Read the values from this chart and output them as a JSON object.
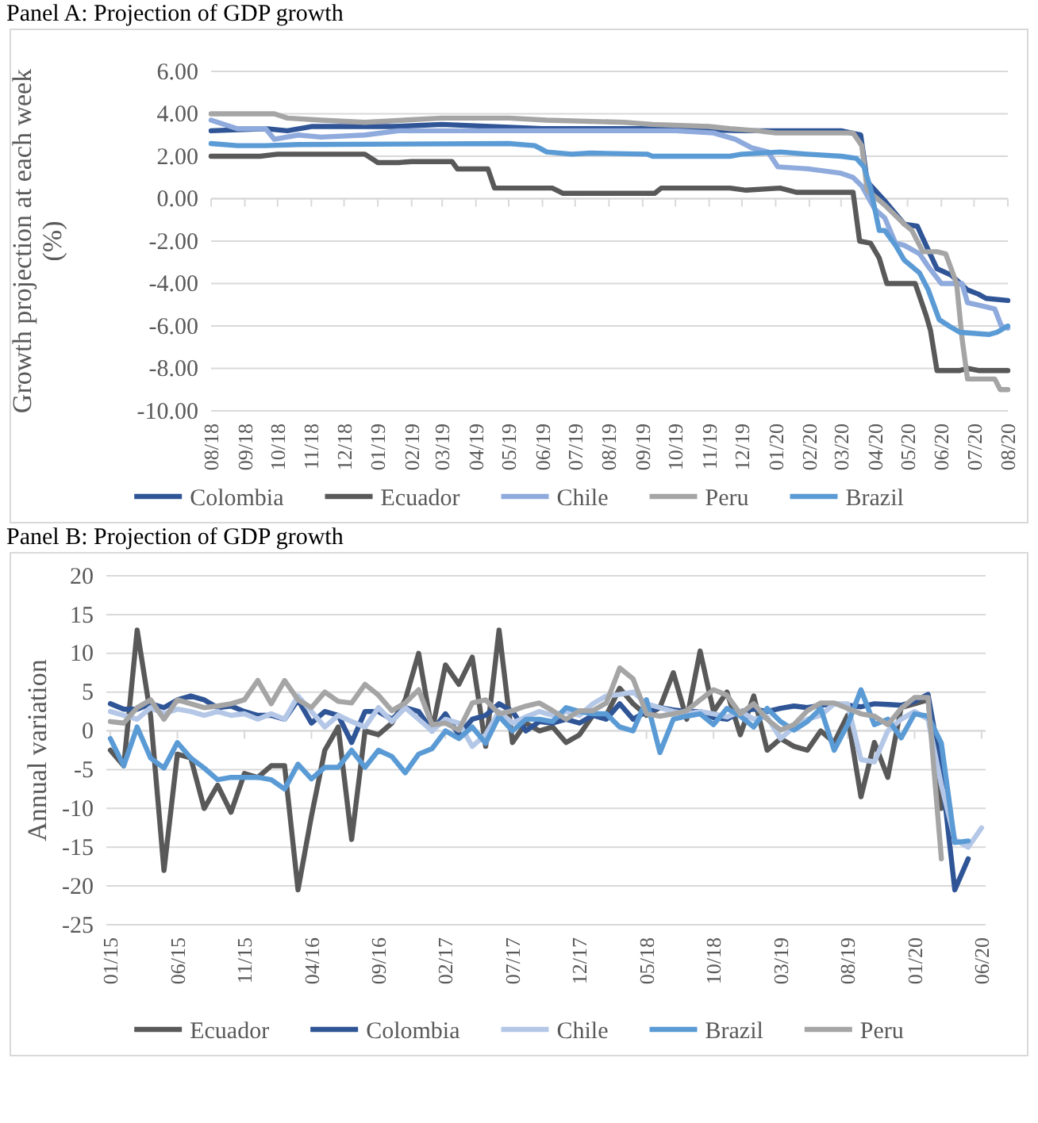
{
  "chart_data": [
    {
      "type": "line",
      "title": "Panel A: Projection of GDP growth",
      "ylabel": "Growth projection at each week (%)",
      "xlim": [
        "2018-08",
        "2020-08"
      ],
      "xticks": [
        {
          "value": "2018-08",
          "label": "08/18"
        },
        {
          "value": "2018-09",
          "label": "09/18"
        },
        {
          "value": "2018-10",
          "label": "10/18"
        },
        {
          "value": "2018-11",
          "label": "11/18"
        },
        {
          "value": "2018-12",
          "label": "12/18"
        },
        {
          "value": "2019-01",
          "label": "01/19"
        },
        {
          "value": "2019-02",
          "label": "02/19"
        },
        {
          "value": "2019-03",
          "label": "03/19"
        },
        {
          "value": "2019-04",
          "label": "04/19"
        },
        {
          "value": "2019-05",
          "label": "05/19"
        },
        {
          "value": "2019-06",
          "label": "06/19"
        },
        {
          "value": "2019-07",
          "label": "07/19"
        },
        {
          "value": "2019-08",
          "label": "08/19"
        },
        {
          "value": "2019-09",
          "label": "09/19"
        },
        {
          "value": "2019-10",
          "label": "10/19"
        },
        {
          "value": "2019-11",
          "label": "11/19"
        },
        {
          "value": "2019-12",
          "label": "12/19"
        },
        {
          "value": "2020-01",
          "label": "01/20"
        },
        {
          "value": "2020-02",
          "label": "02/20"
        },
        {
          "value": "2020-03",
          "label": "03/20"
        },
        {
          "value": "2020-04",
          "label": "04/20"
        },
        {
          "value": "2020-05",
          "label": "05/20"
        },
        {
          "value": "2020-06",
          "label": "06/20"
        },
        {
          "value": "2020-07",
          "label": "07/20"
        },
        {
          "value": "2020-08",
          "label": "08/20"
        }
      ],
      "ylim": [
        -10,
        6
      ],
      "yticks": [
        {
          "value": -10,
          "label": "-10.00"
        },
        {
          "value": -8,
          "label": "-8.00"
        },
        {
          "value": -6,
          "label": "-6.00"
        },
        {
          "value": -4,
          "label": "-4.00"
        },
        {
          "value": -2,
          "label": "-2.00"
        },
        {
          "value": 0,
          "label": "0.00"
        },
        {
          "value": 2,
          "label": "2.00"
        },
        {
          "value": 4,
          "label": "4.00"
        },
        {
          "value": 6,
          "label": "6.00"
        }
      ],
      "grid": "y",
      "legend": "bottom",
      "marker": "none",
      "line_style": "solid",
      "series": [
        {
          "name": "Colombia",
          "color": "#2f5597",
          "x": [
            "2018-08-01",
            "2018-09-20",
            "2018-10-10",
            "2018-11-01",
            "2019-01-15",
            "2019-03-01",
            "2019-06-01",
            "2019-09-01",
            "2019-12-01",
            "2020-03-01",
            "2020-03-19",
            "2020-03-25",
            "2020-04-10",
            "2020-04-28",
            "2020-05-10",
            "2020-05-18",
            "2020-05-28",
            "2020-06-10",
            "2020-06-25",
            "2020-07-05",
            "2020-07-12",
            "2020-08-01"
          ],
          "values": [
            3.2,
            3.3,
            3.2,
            3.4,
            3.4,
            3.5,
            3.3,
            3.3,
            3.2,
            3.2,
            3.0,
            0.8,
            -0.1,
            -1.2,
            -1.3,
            -2.2,
            -3.3,
            -3.6,
            -4.3,
            -4.5,
            -4.7,
            -4.8
          ]
        },
        {
          "name": "Ecuador",
          "color": "#595959",
          "x": [
            "2018-08-01",
            "2018-09-15",
            "2018-10-01",
            "2018-12-20",
            "2019-01-01",
            "2019-01-20",
            "2019-02-01",
            "2019-03-10",
            "2019-03-15",
            "2019-04-12",
            "2019-04-18",
            "2019-06-10",
            "2019-06-20",
            "2019-09-12",
            "2019-09-18",
            "2019-11-20",
            "2019-12-05",
            "2020-01-05",
            "2020-01-20",
            "2020-03-12",
            "2020-03-18",
            "2020-03-28",
            "2020-04-05",
            "2020-04-12",
            "2020-05-08",
            "2020-05-18",
            "2020-05-22",
            "2020-05-28",
            "2020-06-18",
            "2020-06-25",
            "2020-07-05",
            "2020-08-01"
          ],
          "values": [
            2.0,
            2.0,
            2.1,
            2.1,
            1.7,
            1.7,
            1.75,
            1.75,
            1.4,
            1.4,
            0.5,
            0.5,
            0.25,
            0.25,
            0.5,
            0.5,
            0.4,
            0.5,
            0.3,
            0.3,
            -2.0,
            -2.1,
            -2.8,
            -4.0,
            -4.0,
            -5.5,
            -6.2,
            -8.1,
            -8.1,
            -8.0,
            -8.1,
            -8.1
          ]
        },
        {
          "name": "Chile",
          "color": "#8faadc",
          "x": [
            "2018-08-01",
            "2018-08-25",
            "2018-09-20",
            "2018-09-28",
            "2018-10-20",
            "2018-11-10",
            "2018-12-20",
            "2019-01-20",
            "2019-10-01",
            "2019-11-05",
            "2019-11-25",
            "2019-12-10",
            "2019-12-25",
            "2020-01-03",
            "2020-02-01",
            "2020-03-01",
            "2020-03-12",
            "2020-03-20",
            "2020-04-01",
            "2020-04-10",
            "2020-04-20",
            "2020-04-28",
            "2020-05-12",
            "2020-05-20",
            "2020-06-01",
            "2020-06-20",
            "2020-06-25",
            "2020-07-12",
            "2020-07-20",
            "2020-07-26",
            "2020-08-01"
          ],
          "values": [
            3.7,
            3.3,
            3.3,
            2.8,
            3.0,
            2.9,
            3.0,
            3.2,
            3.2,
            3.1,
            2.8,
            2.4,
            2.2,
            1.5,
            1.4,
            1.2,
            1.0,
            0.6,
            -0.5,
            -0.9,
            -2.1,
            -2.2,
            -2.6,
            -3.2,
            -4.0,
            -4.0,
            -4.9,
            -5.1,
            -5.2,
            -6.0,
            -6.1
          ]
        },
        {
          "name": "Peru",
          "color": "#a5a5a5",
          "x": [
            "2018-08-01",
            "2018-09-28",
            "2018-10-10",
            "2018-11-10",
            "2018-12-20",
            "2019-03-01",
            "2019-05-01",
            "2019-06-05",
            "2019-08-15",
            "2019-09-10",
            "2019-11-01",
            "2019-11-20",
            "2019-12-15",
            "2020-01-01",
            "2020-03-12",
            "2020-03-20",
            "2020-03-25",
            "2020-04-10",
            "2020-04-28",
            "2020-05-05",
            "2020-05-15",
            "2020-05-28",
            "2020-06-05",
            "2020-06-15",
            "2020-06-20",
            "2020-06-25",
            "2020-07-20",
            "2020-07-25",
            "2020-08-01"
          ],
          "values": [
            4.0,
            4.0,
            3.8,
            3.7,
            3.6,
            3.8,
            3.8,
            3.7,
            3.6,
            3.5,
            3.4,
            3.3,
            3.2,
            3.1,
            3.1,
            2.5,
            0.4,
            -0.3,
            -1.2,
            -1.5,
            -2.5,
            -2.5,
            -2.6,
            -4.0,
            -6.6,
            -8.5,
            -8.5,
            -9.0,
            -9.0
          ]
        },
        {
          "name": "Brazil",
          "color": "#5b9bd5",
          "x": [
            "2018-08-01",
            "2018-08-25",
            "2018-09-20",
            "2018-10-20",
            "2019-05-01",
            "2019-05-25",
            "2019-06-05",
            "2019-06-28",
            "2019-07-15",
            "2019-09-05",
            "2019-09-10",
            "2019-11-20",
            "2019-12-01",
            "2020-01-05",
            "2020-01-30",
            "2020-03-01",
            "2020-03-15",
            "2020-03-22",
            "2020-03-28",
            "2020-04-05",
            "2020-04-10",
            "2020-04-20",
            "2020-04-28",
            "2020-05-12",
            "2020-05-20",
            "2020-05-30",
            "2020-06-08",
            "2020-06-18",
            "2020-07-15",
            "2020-07-22",
            "2020-08-01"
          ],
          "values": [
            2.6,
            2.5,
            2.5,
            2.55,
            2.6,
            2.5,
            2.2,
            2.1,
            2.15,
            2.1,
            2.0,
            2.0,
            2.1,
            2.2,
            2.1,
            2.0,
            1.9,
            1.5,
            0.5,
            -1.5,
            -1.5,
            -2.2,
            -2.9,
            -3.5,
            -4.3,
            -5.7,
            -6.0,
            -6.3,
            -6.4,
            -6.3,
            -6.0
          ]
        }
      ]
    },
    {
      "type": "line",
      "title": "Panel B: Projection of GDP growth",
      "ylabel": "Annual variation",
      "categories": [
        "01/15",
        null,
        null,
        null,
        null,
        "06/15",
        null,
        null,
        null,
        null,
        "11/15",
        null,
        null,
        null,
        null,
        "04/16",
        null,
        null,
        null,
        null,
        "09/16",
        null,
        null,
        null,
        null,
        "02/17",
        null,
        null,
        null,
        null,
        "07/17",
        null,
        null,
        null,
        null,
        "12/17",
        null,
        null,
        null,
        null,
        "05/18",
        null,
        null,
        null,
        null,
        "10/18",
        null,
        null,
        null,
        null,
        "03/19",
        null,
        null,
        null,
        null,
        "08/19",
        null,
        null,
        null,
        null,
        "01/20",
        null,
        null,
        null,
        null,
        "06/20"
      ],
      "ylim": [
        -25,
        20
      ],
      "yticks": [
        -25,
        -20,
        -15,
        -10,
        -5,
        0,
        5,
        10,
        15,
        20
      ],
      "grid": "y",
      "legend": "bottom",
      "marker": "none",
      "line_style": "solid",
      "series": [
        {
          "name": "Ecuador",
          "color": "#595959",
          "values": [
            -2.5,
            -4.5,
            13,
            2,
            -18,
            -3,
            -3.5,
            -10,
            -7,
            -10.5,
            -5.5,
            -6,
            -4.5,
            -4.5,
            -20.5,
            -11,
            -2.5,
            0.5,
            -14,
            0,
            -0.5,
            1,
            4,
            10,
            0,
            8.5,
            6,
            9.5,
            -2,
            13,
            -1.5,
            1,
            0,
            0.5,
            -1.5,
            -0.5,
            2,
            2,
            5.5,
            3.5,
            2,
            3,
            7.5,
            1.5,
            10.3,
            2.5,
            5,
            -0.5,
            4.5,
            -2.5,
            -1,
            -2,
            -2.5,
            0,
            -1.5,
            2,
            -8.5,
            -1.5,
            -6,
            3,
            3.5,
            4,
            -10,
            null,
            null,
            null
          ]
        },
        {
          "name": "Colombia",
          "color": "#2f5597",
          "values": [
            3.5,
            2.8,
            2.8,
            3.5,
            3,
            4,
            4.5,
            4,
            3,
            3.2,
            2.5,
            2,
            2,
            1.5,
            4,
            1,
            2.5,
            2,
            -1.5,
            2.5,
            2.5,
            1.5,
            3,
            2.5,
            0,
            2.2,
            -0.5,
            1.5,
            2,
            3.5,
            2.5,
            0,
            1.2,
            1,
            1.5,
            1,
            2,
            1.5,
            3.5,
            1.5,
            2.5,
            3,
            2.7,
            2.5,
            2.5,
            1.7,
            1.5,
            2.5,
            2.8,
            2.5,
            2.9,
            3.2,
            3,
            3.3,
            3.5,
            3.3,
            3.1,
            3.5,
            3.4,
            3.3,
            3.8,
            4.7,
            -5,
            -20.5,
            -16.5,
            null
          ]
        },
        {
          "name": "Chile",
          "color": "#b4c7e7",
          "values": [
            2.5,
            2,
            1.5,
            3,
            2.2,
            2.8,
            2.5,
            2,
            2.5,
            2,
            2.2,
            1.5,
            2.2,
            1.5,
            4.5,
            2.5,
            0.5,
            2,
            1.2,
            0.5,
            3,
            1.2,
            3,
            1.5,
            0,
            1.5,
            1,
            -2,
            -0.5,
            2.5,
            1,
            1.8,
            2.5,
            2,
            2.5,
            2,
            3.5,
            4.5,
            4.7,
            5,
            3.5,
            3,
            2.5,
            2.2,
            2.5,
            2.2,
            1.8,
            2.5,
            1.5,
            1.8,
            -1,
            0.5,
            1.5,
            2,
            3.5,
            3.5,
            -3.7,
            -4,
            0,
            1.5,
            2.5,
            1.5,
            -7,
            -14,
            -15,
            -12.5
          ]
        },
        {
          "name": "Brazil",
          "color": "#5b9bd5",
          "values": [
            -1,
            -4.5,
            0.5,
            -3.5,
            -4.8,
            -1.5,
            -3.5,
            -4.8,
            -6.3,
            -6,
            -6,
            -6,
            -6.3,
            -7.5,
            -4.3,
            -6.2,
            -4.7,
            -4.7,
            -2.5,
            -4.7,
            -2.5,
            -3.3,
            -5.4,
            -3,
            -2.3,
            0,
            -1,
            0.5,
            -1.6,
            1.9,
            0,
            1.5,
            1.5,
            1.2,
            3,
            2.5,
            2.2,
            2.2,
            0.5,
            0,
            4,
            -2.8,
            1.5,
            1.9,
            2.2,
            0.8,
            2.9,
            1.9,
            0.5,
            2.9,
            1.2,
            0.1,
            1.2,
            2.9,
            -2.5,
            0.8,
            5.3,
            0.8,
            1.5,
            -0.9,
            2.2,
            1.9,
            -1.6,
            -14.4,
            -14.2,
            null
          ]
        },
        {
          "name": "Peru",
          "color": "#a5a5a5",
          "values": [
            1.2,
            1,
            3,
            4,
            1.5,
            4,
            3.5,
            3,
            3.2,
            3.5,
            4,
            6.5,
            3.5,
            6.5,
            4,
            3,
            5,
            3.8,
            3.6,
            6,
            4.6,
            2.6,
            3.6,
            5.3,
            0.8,
            1,
            0.1,
            3.6,
            4,
            2.2,
            2.6,
            3.2,
            3.6,
            2.6,
            1.5,
            2.6,
            2.6,
            3.6,
            8.1,
            6.7,
            2.2,
            1.9,
            2.2,
            2.6,
            4,
            5.3,
            4.6,
            2.2,
            3.5,
            1.5,
            0.1,
            0.8,
            2.6,
            3.6,
            3.6,
            2.9,
            2.2,
            1.9,
            0.8,
            2.9,
            4.3,
            4.3,
            -16.5,
            null,
            null,
            null
          ]
        }
      ]
    }
  ]
}
